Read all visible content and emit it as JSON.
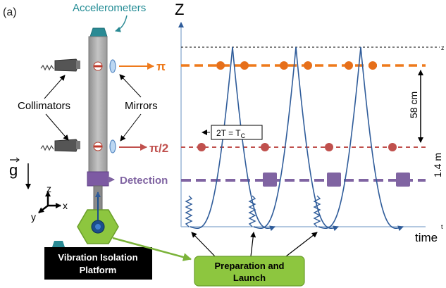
{
  "panel_label": "(a)",
  "left": {
    "accelerometers": "Accelerometers",
    "collimators": "Collimators",
    "mirrors": "Mirrors",
    "gravity": "g",
    "axes": {
      "z": "z",
      "y": "y",
      "x": "x"
    },
    "platform_line1": "Vibration Isolation",
    "platform_line2": "Platform"
  },
  "pulses": {
    "pi": "π",
    "pi_half": "π/2",
    "detection": "Detection"
  },
  "plot": {
    "y_axis_label": "Z",
    "x_axis_label": "time",
    "tc_label": "2T = T",
    "tc_sub": "C",
    "dist_58": "58 cm",
    "dist_14": "1.4 m",
    "edge_mark_top": "z",
    "edge_mark_bottom": "t"
  },
  "launch_box": {
    "line1": "Preparation and",
    "line2": "Launch"
  },
  "colors": {
    "orange": "#ee7a1c",
    "red": "#c0504d",
    "purple": "#8064a2",
    "blue": "#2f5c9a",
    "teal": "#2a8a94",
    "green": "#8dc63f",
    "gray": "#a6a6a6"
  }
}
